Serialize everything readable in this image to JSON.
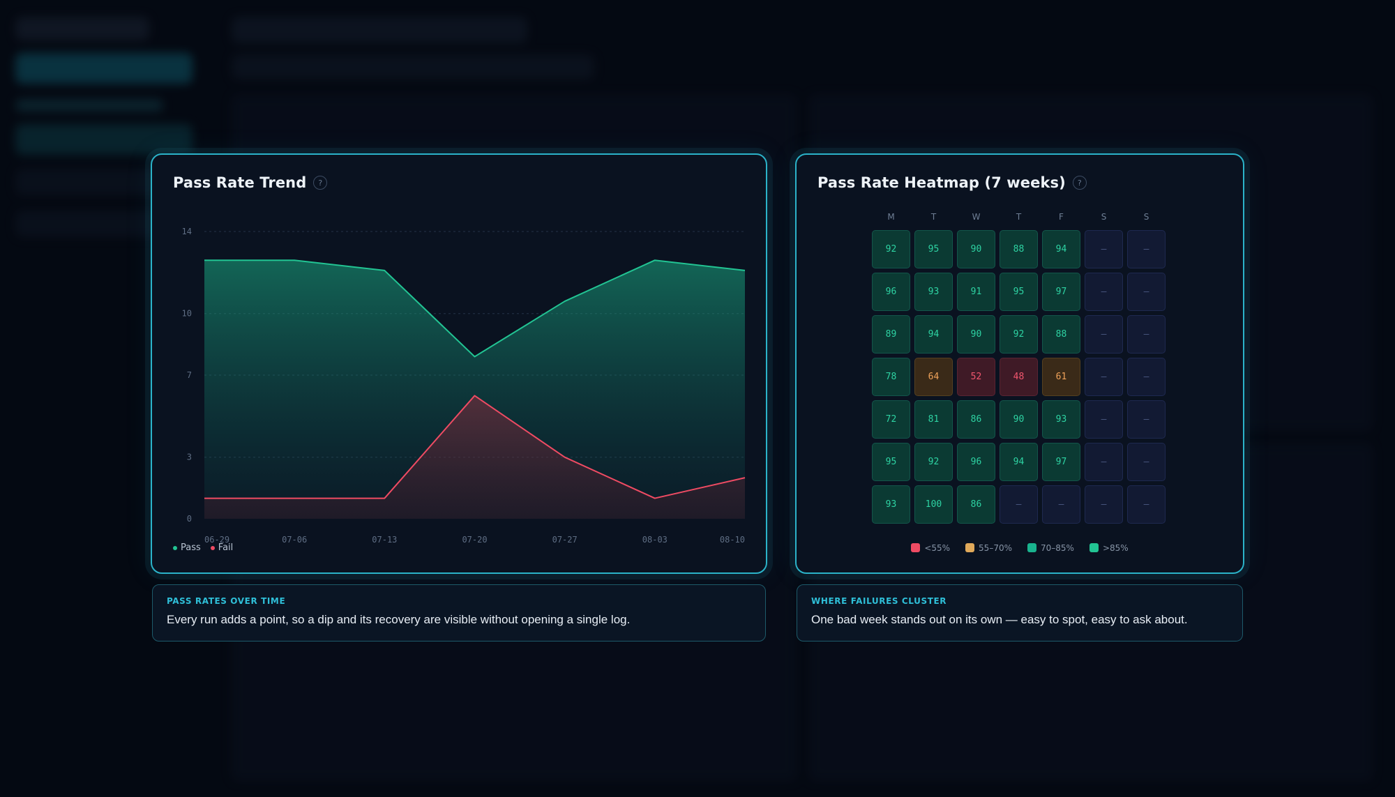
{
  "trend_card": {
    "title": "Pass Rate Trend",
    "help_glyph": "?",
    "legend": [
      {
        "label": "Pass",
        "color": "#22c493"
      },
      {
        "label": "Fail",
        "color": "#ef4b63"
      }
    ]
  },
  "chart_data": {
    "type": "area",
    "categories": [
      "06-29",
      "07-06",
      "07-13",
      "07-20",
      "07-27",
      "08-03",
      "08-10"
    ],
    "yticks": [
      "14",
      "10",
      "7",
      "3",
      "0"
    ],
    "ylim": [
      0,
      14
    ],
    "grid": true,
    "legend_placement": "bottom-left",
    "series": [
      {
        "name": "Pass",
        "color": "#22c493",
        "values": [
          12.6,
          12.6,
          12.1,
          7.9,
          10.6,
          12.6,
          12.1
        ]
      },
      {
        "name": "Fail",
        "color": "#ef4b63",
        "values": [
          1.0,
          1.0,
          1.0,
          6.0,
          3.0,
          1.0,
          2.0
        ]
      }
    ]
  },
  "heatmap_card": {
    "title": "Pass Rate Heatmap (7 weeks)",
    "help_glyph": "?",
    "days": [
      "M",
      "T",
      "W",
      "T",
      "F",
      "S",
      "S"
    ],
    "rows": [
      [
        "92",
        "95",
        "90",
        "88",
        "94",
        "–",
        "–"
      ],
      [
        "96",
        "93",
        "91",
        "95",
        "97",
        "–",
        "–"
      ],
      [
        "89",
        "94",
        "90",
        "92",
        "88",
        "–",
        "–"
      ],
      [
        "78",
        "64",
        "52",
        "48",
        "61",
        "–",
        "–"
      ],
      [
        "72",
        "81",
        "86",
        "90",
        "93",
        "–",
        "–"
      ],
      [
        "95",
        "92",
        "96",
        "94",
        "97",
        "–",
        "–"
      ],
      [
        "93",
        "100",
        "86",
        "–",
        "–",
        "–",
        "–"
      ]
    ],
    "legend": [
      {
        "label": "<55%",
        "color": "#ef4b63"
      },
      {
        "label": "55–70%",
        "color": "#e0a95a"
      },
      {
        "label": "70–85%",
        "color": "#19b38e"
      },
      {
        "label": ">85%",
        "color": "#22c493"
      }
    ]
  },
  "captions": {
    "trend": {
      "kicker": "PASS RATES OVER TIME",
      "text": "Every run adds a point, so a dip and its recovery are visible without opening a single log."
    },
    "heatmap": {
      "kicker": "WHERE FAILURES CLUSTER",
      "text": "One bad week stands out on its own — easy to spot, easy to ask about."
    }
  }
}
